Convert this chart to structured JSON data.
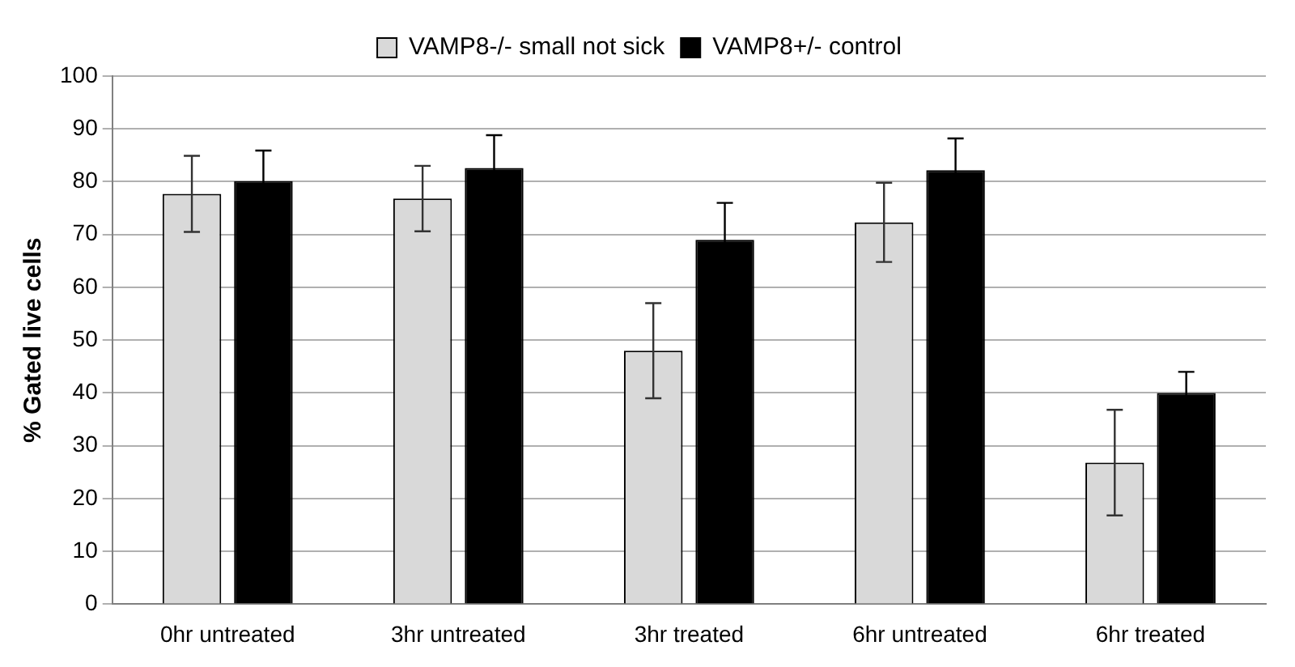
{
  "chart_data": {
    "type": "bar",
    "ylabel": "% Gated live cells",
    "categories": [
      "0hr untreated",
      "3hr untreated",
      "3hr treated",
      "6hr untreated",
      "6hr treated"
    ],
    "series": [
      {
        "name": "VAMP8-/- small not sick",
        "color": "#d9d9d9",
        "values": [
          77.7,
          76.8,
          48,
          72.3,
          26.8
        ],
        "errors": [
          7.2,
          6.2,
          9,
          7.5,
          10
        ]
      },
      {
        "name": "VAMP8+/- control",
        "color": "#000000",
        "values": [
          80.1,
          82.6,
          69,
          82.2,
          40
        ],
        "errors": [
          5.8,
          6.2,
          7,
          6,
          4
        ]
      }
    ],
    "ylim": [
      0,
      100
    ],
    "yticks": [
      0,
      10,
      20,
      30,
      40,
      50,
      60,
      70,
      80,
      90,
      100
    ],
    "grid": "y",
    "legend": "top"
  }
}
